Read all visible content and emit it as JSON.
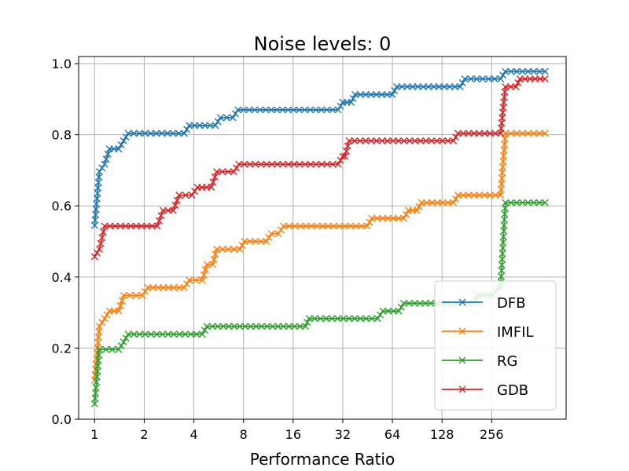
{
  "chart_data": {
    "type": "line",
    "title": "Noise levels: 0",
    "xlabel": "Performance Ratio",
    "ylabel": "",
    "xscale": "log2",
    "xlim": [
      0.8,
      724
    ],
    "ylim": [
      0.0,
      1.02
    ],
    "x_ticks": [
      1,
      2,
      4,
      8,
      16,
      32,
      64,
      128,
      256
    ],
    "x_tick_labels": [
      "1",
      "2",
      "4",
      "8",
      "16",
      "32",
      "64",
      "128",
      "256"
    ],
    "y_ticks": [
      0.0,
      0.2,
      0.4,
      0.6,
      0.8,
      1.0
    ],
    "y_tick_labels": [
      "0.0",
      "0.2",
      "0.4",
      "0.6",
      "0.8",
      "1.0"
    ],
    "grid": true,
    "legend_position": "bottom-right",
    "series": [
      {
        "name": "DFB",
        "color": "#1f77b4",
        "points": [
          [
            1,
            0.545
          ],
          [
            1.07,
            0.696
          ],
          [
            1.15,
            0.717
          ],
          [
            1.23,
            0.76
          ],
          [
            1.4,
            0.76
          ],
          [
            1.5,
            0.783
          ],
          [
            1.6,
            0.804
          ],
          [
            3.5,
            0.804
          ],
          [
            3.75,
            0.826
          ],
          [
            5.4,
            0.826
          ],
          [
            5.8,
            0.848
          ],
          [
            6.9,
            0.848
          ],
          [
            7.4,
            0.87
          ],
          [
            30,
            0.87
          ],
          [
            32,
            0.891
          ],
          [
            36,
            0.891
          ],
          [
            38,
            0.913
          ],
          [
            64,
            0.913
          ],
          [
            68,
            0.935
          ],
          [
            165,
            0.935
          ],
          [
            176,
            0.957
          ],
          [
            290,
            0.957
          ],
          [
            310,
            0.978
          ],
          [
            540,
            0.978
          ]
        ]
      },
      {
        "name": "IMFIL",
        "color": "#ff7f0e",
        "points": [
          [
            1,
            0.109
          ],
          [
            1.07,
            0.261
          ],
          [
            1.15,
            0.283
          ],
          [
            1.23,
            0.304
          ],
          [
            1.4,
            0.304
          ],
          [
            1.5,
            0.348
          ],
          [
            1.95,
            0.348
          ],
          [
            2.1,
            0.37
          ],
          [
            3.5,
            0.37
          ],
          [
            3.75,
            0.391
          ],
          [
            4.5,
            0.391
          ],
          [
            4.8,
            0.435
          ],
          [
            5.2,
            0.435
          ],
          [
            5.5,
            0.478
          ],
          [
            7.6,
            0.478
          ],
          [
            8.1,
            0.5
          ],
          [
            11,
            0.5
          ],
          [
            11.8,
            0.522
          ],
          [
            13,
            0.522
          ],
          [
            14,
            0.543
          ],
          [
            45,
            0.543
          ],
          [
            48,
            0.565
          ],
          [
            75,
            0.565
          ],
          [
            80,
            0.587
          ],
          [
            90,
            0.587
          ],
          [
            96,
            0.609
          ],
          [
            150,
            0.609
          ],
          [
            160,
            0.63
          ],
          [
            290,
            0.63
          ],
          [
            310,
            0.804
          ],
          [
            540,
            0.804
          ]
        ]
      },
      {
        "name": "RG",
        "color": "#2ca02c",
        "points": [
          [
            1,
            0.043
          ],
          [
            1.07,
            0.196
          ],
          [
            1.4,
            0.196
          ],
          [
            1.5,
            0.217
          ],
          [
            1.6,
            0.239
          ],
          [
            4.5,
            0.239
          ],
          [
            4.8,
            0.261
          ],
          [
            19,
            0.261
          ],
          [
            20,
            0.283
          ],
          [
            52,
            0.283
          ],
          [
            56,
            0.304
          ],
          [
            70,
            0.304
          ],
          [
            75,
            0.326
          ],
          [
            200,
            0.326
          ],
          [
            210,
            0.348
          ],
          [
            260,
            0.348
          ],
          [
            280,
            0.37
          ],
          [
            290,
            0.37
          ],
          [
            310,
            0.609
          ],
          [
            540,
            0.609
          ]
        ]
      },
      {
        "name": "GDB",
        "color": "#d62728",
        "points": [
          [
            1,
            0.457
          ],
          [
            1.07,
            0.478
          ],
          [
            1.15,
            0.543
          ],
          [
            2.4,
            0.543
          ],
          [
            2.6,
            0.587
          ],
          [
            3.0,
            0.587
          ],
          [
            3.25,
            0.63
          ],
          [
            3.9,
            0.63
          ],
          [
            4.2,
            0.652
          ],
          [
            5.1,
            0.652
          ],
          [
            5.5,
            0.696
          ],
          [
            7.0,
            0.696
          ],
          [
            7.5,
            0.717
          ],
          [
            30,
            0.717
          ],
          [
            32,
            0.739
          ],
          [
            33,
            0.739
          ],
          [
            35,
            0.783
          ],
          [
            150,
            0.783
          ],
          [
            160,
            0.804
          ],
          [
            290,
            0.804
          ],
          [
            310,
            0.935
          ],
          [
            360,
            0.935
          ],
          [
            380,
            0.957
          ],
          [
            540,
            0.957
          ]
        ]
      }
    ]
  }
}
